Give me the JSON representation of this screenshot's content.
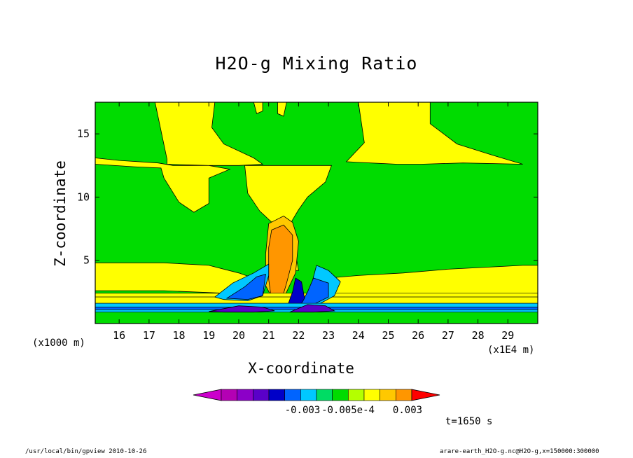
{
  "chart_data": {
    "type": "heatmap",
    "title": "H2O-g Mixing Ratio",
    "xlabel": "X-coordinate",
    "ylabel": "Z-coordinate",
    "x_unit": "(x1E4 m)",
    "y_unit": "(x1000 m)",
    "xlim": [
      15.2,
      30.0
    ],
    "ylim": [
      0.0,
      17.5
    ],
    "x_ticks": [
      16,
      17,
      18,
      19,
      20,
      21,
      22,
      23,
      24,
      25,
      26,
      27,
      28,
      29
    ],
    "y_ticks": [
      5,
      10,
      15
    ],
    "grid": false,
    "colorbar": {
      "tick_labels": [
        "-0.003",
        "-0.005e-4",
        "0.003"
      ],
      "colors": [
        "#cc00cc",
        "#b400b4",
        "#8c00c8",
        "#5a00c8",
        "#0000c8",
        "#0064ff",
        "#00c8ff",
        "#00dc64",
        "#00dc00",
        "#b4ff00",
        "#ffff00",
        "#ffc800",
        "#ff9600",
        "#ff0000"
      ]
    },
    "field_levels": {
      "background": "#00dc00",
      "positive_weak": "#ffff00",
      "positive_medium": "#ffc800",
      "positive_strong": "#ff9600",
      "negative_weak": "#00c8ff",
      "negative_medium": "#0064ff",
      "negative_strong": "#0000c8",
      "negative_deep": "#5a00c8"
    }
  },
  "annotations": {
    "time": "t=1650 s",
    "footer_left": "/usr/local/bin/gpview  2010-10-26",
    "footer_right": "arare-earth_H2O-g.nc@H2O-g,x=150000:300000"
  }
}
